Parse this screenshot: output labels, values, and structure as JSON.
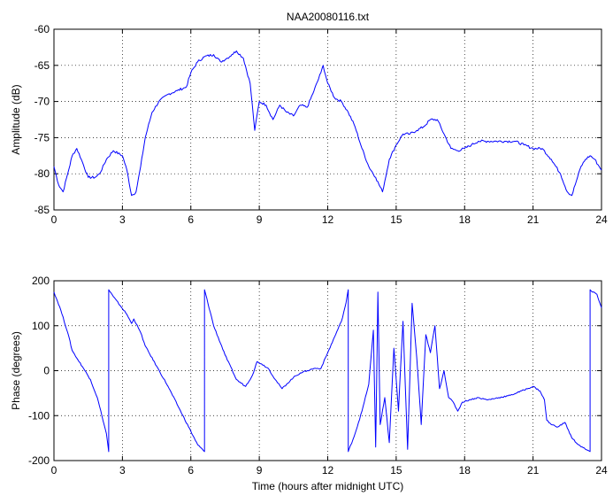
{
  "chart_data": [
    {
      "type": "line",
      "title": "NAA20080116.txt",
      "xlabel": "",
      "ylabel": "Amplitude (dB)",
      "xlim": [
        0,
        24
      ],
      "ylim": [
        -85,
        -60
      ],
      "xticks": [
        "0",
        "3",
        "6",
        "9",
        "12",
        "15",
        "18",
        "21",
        "24"
      ],
      "yticks": [
        "-60",
        "-65",
        "-70",
        "-75",
        "-80",
        "-85"
      ],
      "grid": true,
      "color": "#0000ff",
      "series": [
        {
          "x": [
            0,
            0.2,
            0.4,
            0.6,
            0.8,
            1.0,
            1.2,
            1.5,
            1.8,
            2.0,
            2.3,
            2.6,
            3.0,
            3.2,
            3.4,
            3.6,
            3.8,
            4.0,
            4.3,
            4.6,
            5.0,
            5.4,
            5.8,
            6.0,
            6.3,
            6.6,
            7.0,
            7.3,
            7.6,
            7.8,
            8.0,
            8.3,
            8.6,
            8.8,
            9.0,
            9.3,
            9.6,
            9.9,
            10.2,
            10.5,
            10.8,
            11.1,
            11.4,
            11.7,
            11.8,
            12.0,
            12.3,
            12.6,
            12.9,
            13.2,
            13.5,
            13.8,
            14.1,
            14.4,
            14.7,
            15.0,
            15.3,
            15.6,
            15.9,
            16.2,
            16.5,
            16.8,
            17.1,
            17.4,
            17.7,
            18.0,
            18.3,
            18.6,
            19.0,
            19.4,
            19.8,
            20.2,
            20.6,
            21.0,
            21.4,
            21.8,
            22.2,
            22.5,
            22.7,
            22.9,
            23.1,
            23.3,
            23.5,
            23.7,
            23.9,
            24.0
          ],
          "values": [
            -79,
            -81.5,
            -82.5,
            -80,
            -77.5,
            -76.5,
            -78,
            -80.5,
            -80.5,
            -80,
            -78,
            -76.8,
            -77.5,
            -79.5,
            -83,
            -82.5,
            -79,
            -75,
            -71.5,
            -70,
            -69,
            -68.5,
            -68,
            -66,
            -64.5,
            -63.8,
            -63.5,
            -64.5,
            -64,
            -63.5,
            -63,
            -64,
            -67.5,
            -74,
            -70,
            -70.5,
            -72.5,
            -70.5,
            -71.5,
            -72,
            -70.5,
            -70.8,
            -68.5,
            -66,
            -65,
            -67.5,
            -69.5,
            -70,
            -71.5,
            -73.5,
            -76.5,
            -79,
            -80.5,
            -82.5,
            -78,
            -76,
            -74.5,
            -74.5,
            -74,
            -73.5,
            -72.5,
            -72.5,
            -74.5,
            -76.5,
            -76.8,
            -76.5,
            -76,
            -75.5,
            -75.5,
            -75.5,
            -75.5,
            -75.5,
            -76,
            -76.5,
            -76.5,
            -78,
            -80,
            -82.5,
            -83,
            -81,
            -79,
            -78,
            -77.5,
            -78,
            -79,
            -79.5
          ]
        }
      ]
    },
    {
      "type": "line",
      "title": "",
      "xlabel": "Time (hours after midnight UTC)",
      "ylabel": "Phase (degrees)",
      "xlim": [
        0,
        24
      ],
      "ylim": [
        -200,
        200
      ],
      "xticks": [
        "0",
        "3",
        "6",
        "9",
        "12",
        "15",
        "18",
        "21",
        "24"
      ],
      "yticks": [
        "200",
        "100",
        "0",
        "-100",
        "-200"
      ],
      "grid": true,
      "color": "#0000ff",
      "series": [
        {
          "x": [
            0,
            0.3,
            0.6,
            0.8,
            1.0,
            1.3,
            1.6,
            1.9,
            2.1,
            2.3,
            2.4,
            2.4,
            2.6,
            2.9,
            3.2,
            3.4,
            3.5,
            3.7,
            3.8,
            4.0,
            4.5,
            5.0,
            5.5,
            6.0,
            6.3,
            6.6,
            6.6,
            7.0,
            7.5,
            8.0,
            8.4,
            8.7,
            8.9,
            9.1,
            9.4,
            9.7,
            10.0,
            10.2,
            10.5,
            10.8,
            11.1,
            11.4,
            11.7,
            12.0,
            12.3,
            12.6,
            12.8,
            12.9,
            12.9,
            13.2,
            13.5,
            13.8,
            14.0,
            14.1,
            14.2,
            14.3,
            14.5,
            14.7,
            14.9,
            15.1,
            15.3,
            15.5,
            15.7,
            15.9,
            16.1,
            16.3,
            16.5,
            16.7,
            16.9,
            17.1,
            17.3,
            17.5,
            17.7,
            17.9,
            18.2,
            18.6,
            19.0,
            19.5,
            20.0,
            20.5,
            21.0,
            21.3,
            21.5,
            21.6,
            21.8,
            22.1,
            22.4,
            22.7,
            23.0,
            23.3,
            23.5,
            23.5,
            23.6,
            23.8,
            24.0
          ],
          "values": [
            175,
            135,
            85,
            45,
            28,
            5,
            -20,
            -60,
            -100,
            -140,
            -180,
            180,
            165,
            145,
            125,
            105,
            115,
            95,
            85,
            55,
            10,
            -35,
            -85,
            -135,
            -165,
            -180,
            180,
            100,
            35,
            -20,
            -35,
            -10,
            20,
            15,
            5,
            -20,
            -40,
            -30,
            -15,
            -5,
            0,
            5,
            5,
            40,
            75,
            110,
            150,
            180,
            -180,
            -140,
            -90,
            -30,
            90,
            -170,
            175,
            -120,
            -60,
            -160,
            50,
            -90,
            110,
            -175,
            150,
            30,
            -120,
            80,
            40,
            100,
            -40,
            0,
            -60,
            -70,
            -90,
            -70,
            -65,
            -60,
            -65,
            -60,
            -55,
            -45,
            -35,
            -45,
            -65,
            -110,
            -120,
            -125,
            -115,
            -150,
            -165,
            -175,
            -180,
            180,
            175,
            170,
            140
          ]
        }
      ]
    }
  ]
}
